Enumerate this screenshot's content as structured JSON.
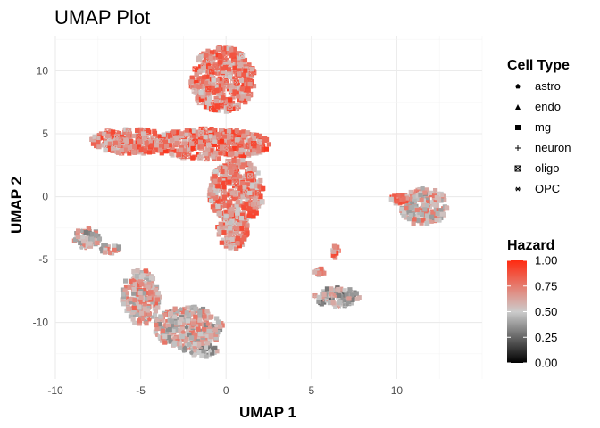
{
  "chart_data": {
    "type": "scatter",
    "title": "UMAP Plot",
    "xlabel": "UMAP 1",
    "ylabel": "UMAP 2",
    "xlim": [
      -10,
      15
    ],
    "ylim": [
      -14.5,
      12.8
    ],
    "x_ticks": [
      -10,
      -5,
      0,
      5,
      10
    ],
    "y_ticks": [
      -10,
      -5,
      0,
      5,
      10
    ],
    "grid": true,
    "legend_position": "right",
    "shape_legend": {
      "title": "Cell Type",
      "items": [
        {
          "label": "astro",
          "symbol": "pentagon"
        },
        {
          "label": "endo",
          "symbol": "triangle"
        },
        {
          "label": "mg",
          "symbol": "square"
        },
        {
          "label": "neuron",
          "symbol": "plus"
        },
        {
          "label": "oligo",
          "symbol": "boxed-x"
        },
        {
          "label": "OPC",
          "symbol": "asterisk"
        }
      ]
    },
    "color_legend": {
      "title": "Hazard",
      "ticks": [
        "1.00",
        "0.75",
        "0.50",
        "0.25",
        "0.00"
      ],
      "low_color": "#000000",
      "mid_color": "#cccccc",
      "high_color": "#ff2a10"
    },
    "clusters": [
      {
        "cell_type": "oligo",
        "shape": "ellipse",
        "cx": -0.2,
        "cy": 9.3,
        "rx": 1.9,
        "ry": 2.6,
        "hazard": 0.72
      },
      {
        "cell_type": "oligo",
        "shape": "ellipse",
        "cx": -1.0,
        "cy": 4.2,
        "rx": 3.6,
        "ry": 1.2,
        "hazard": 0.74
      },
      {
        "cell_type": "oligo",
        "shape": "ellipse",
        "cx": -5.5,
        "cy": 4.4,
        "rx": 2.4,
        "ry": 1.0,
        "hazard": 0.72
      },
      {
        "cell_type": "oligo",
        "shape": "ellipse",
        "cx": 0.6,
        "cy": 0.4,
        "rx": 1.6,
        "ry": 2.6,
        "hazard": 0.71
      },
      {
        "cell_type": "oligo",
        "shape": "ellipse",
        "cx": 0.4,
        "cy": -2.6,
        "rx": 0.9,
        "ry": 1.6,
        "hazard": 0.69
      },
      {
        "cell_type": "astro",
        "shape": "ellipse",
        "cx": -2.2,
        "cy": -10.4,
        "rx": 2.0,
        "ry": 1.7,
        "hazard": 0.55
      },
      {
        "cell_type": "astro",
        "shape": "ellipse",
        "cx": -5.0,
        "cy": -8.0,
        "rx": 1.1,
        "ry": 2.2,
        "hazard": 0.6
      },
      {
        "cell_type": "astro",
        "shape": "ellipse",
        "cx": -8.2,
        "cy": -3.3,
        "rx": 0.8,
        "ry": 0.8,
        "hazard": 0.52
      },
      {
        "cell_type": "astro",
        "shape": "ellipse",
        "cx": -6.8,
        "cy": -4.2,
        "rx": 0.6,
        "ry": 0.4,
        "hazard": 0.58
      },
      {
        "cell_type": "astro",
        "shape": "ellipse",
        "cx": -1.5,
        "cy": -12.2,
        "rx": 1.0,
        "ry": 0.6,
        "hazard": 0.5
      },
      {
        "cell_type": "mg",
        "shape": "ellipse",
        "cx": 11.6,
        "cy": -0.8,
        "rx": 1.4,
        "ry": 1.5,
        "hazard": 0.58
      },
      {
        "cell_type": "mg",
        "shape": "ellipse",
        "cx": 10.1,
        "cy": -0.2,
        "rx": 0.6,
        "ry": 0.4,
        "hazard": 0.7
      },
      {
        "cell_type": "neuron",
        "shape": "ellipse",
        "cx": 6.5,
        "cy": -8.0,
        "rx": 1.3,
        "ry": 0.8,
        "hazard": 0.45
      },
      {
        "cell_type": "endo",
        "shape": "ellipse",
        "cx": 6.4,
        "cy": -4.4,
        "rx": 0.2,
        "ry": 0.5,
        "hazard": 0.72
      },
      {
        "cell_type": "endo",
        "shape": "ellipse",
        "cx": 5.5,
        "cy": -6.0,
        "rx": 0.3,
        "ry": 0.3,
        "hazard": 0.7
      }
    ]
  }
}
